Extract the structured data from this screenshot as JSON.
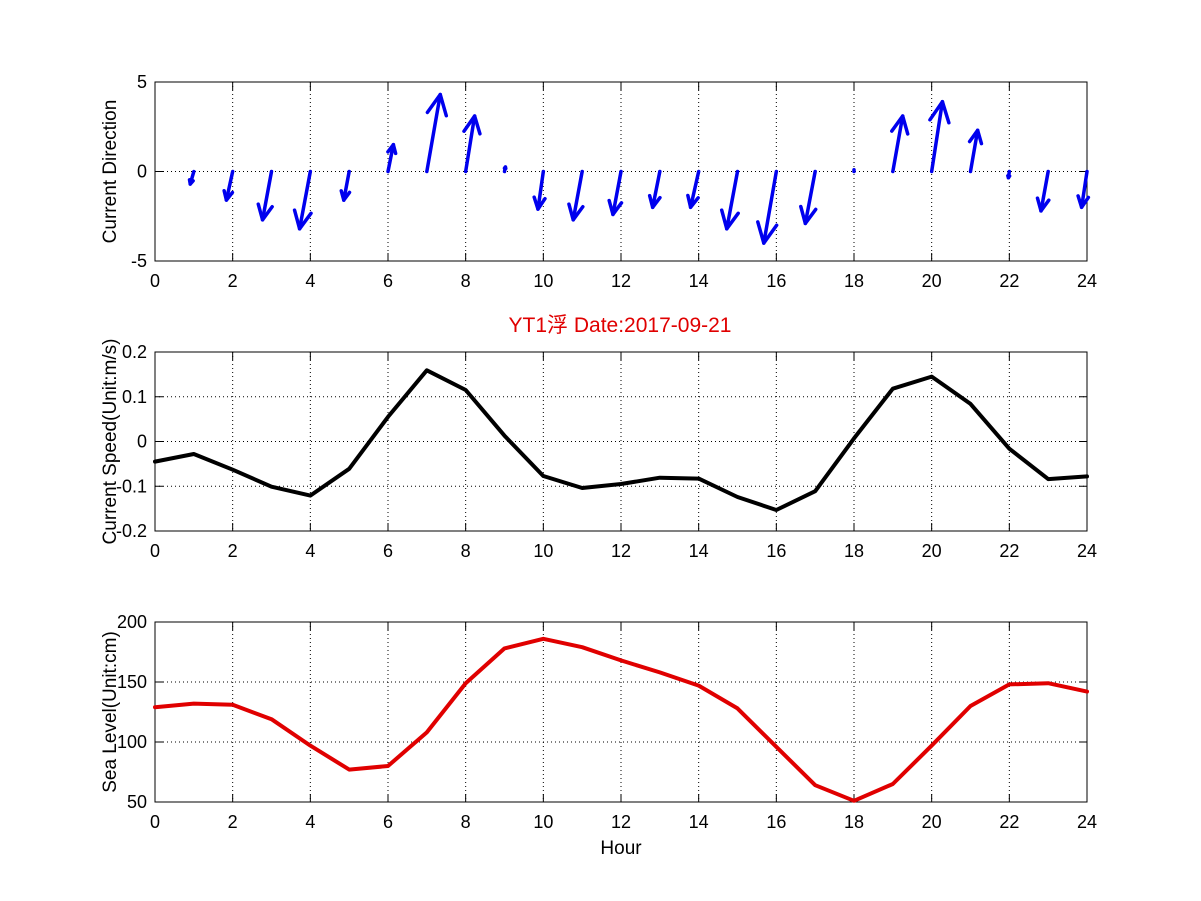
{
  "figure": {
    "title": "YT1浮    Date:2017-09-21",
    "title_color": "#e00000"
  },
  "chart_data": [
    {
      "id": "direction",
      "type": "quiver",
      "title": "",
      "xlabel": "",
      "ylabel": "Current Direction",
      "xlim": [
        0,
        24
      ],
      "ylim": [
        -5,
        5
      ],
      "xticks": [
        0,
        2,
        4,
        6,
        8,
        10,
        12,
        14,
        16,
        18,
        20,
        22,
        24
      ],
      "yticks": [
        -5,
        0,
        5
      ],
      "grid": true,
      "color": "#0000ee",
      "arrows": [
        {
          "x": 1,
          "u": -0.2,
          "v": -0.7
        },
        {
          "x": 2,
          "u": -0.35,
          "v": -1.6
        },
        {
          "x": 3,
          "u": -0.5,
          "v": -2.7
        },
        {
          "x": 4,
          "u": -0.6,
          "v": -3.2
        },
        {
          "x": 5,
          "u": -0.3,
          "v": -1.6
        },
        {
          "x": 6,
          "u": 0.3,
          "v": 1.5
        },
        {
          "x": 7,
          "u": 0.75,
          "v": 4.3
        },
        {
          "x": 8,
          "u": 0.5,
          "v": 3.1
        },
        {
          "x": 9,
          "u": 0.05,
          "v": 0.25
        },
        {
          "x": 10,
          "u": -0.3,
          "v": -2.1
        },
        {
          "x": 11,
          "u": -0.5,
          "v": -2.7
        },
        {
          "x": 12,
          "u": -0.45,
          "v": -2.4
        },
        {
          "x": 13,
          "u": -0.4,
          "v": -2.0
        },
        {
          "x": 14,
          "u": -0.45,
          "v": -2.0
        },
        {
          "x": 15,
          "u": -0.6,
          "v": -3.2
        },
        {
          "x": 16,
          "u": -0.7,
          "v": -4.0
        },
        {
          "x": 17,
          "u": -0.55,
          "v": -2.9
        },
        {
          "x": 18,
          "u": 0.0,
          "v": 0.1
        },
        {
          "x": 19,
          "u": 0.55,
          "v": 3.1
        },
        {
          "x": 20,
          "u": 0.6,
          "v": 3.9
        },
        {
          "x": 21,
          "u": 0.4,
          "v": 2.3
        },
        {
          "x": 22,
          "u": -0.05,
          "v": -0.35
        },
        {
          "x": 23,
          "u": -0.4,
          "v": -2.2
        },
        {
          "x": 24,
          "u": -0.3,
          "v": -2.0
        }
      ]
    },
    {
      "id": "speed",
      "type": "line",
      "title": "",
      "xlabel": "",
      "ylabel": "Current Speed(Unit:m/s)",
      "xlim": [
        0,
        24
      ],
      "ylim": [
        -0.2,
        0.2
      ],
      "xticks": [
        0,
        2,
        4,
        6,
        8,
        10,
        12,
        14,
        16,
        18,
        20,
        22,
        24
      ],
      "yticks": [
        0.2,
        0.1,
        0,
        -0.1,
        -0.2
      ],
      "grid": true,
      "color": "#000000",
      "x": [
        0,
        1,
        2,
        3,
        4,
        5,
        6,
        7,
        8,
        9,
        10,
        11,
        12,
        13,
        14,
        15,
        16,
        17,
        18,
        19,
        20,
        21,
        22,
        23,
        24
      ],
      "y": [
        -0.045,
        -0.028,
        -0.063,
        -0.101,
        -0.121,
        -0.061,
        0.055,
        0.159,
        0.115,
        0.013,
        -0.077,
        -0.104,
        -0.095,
        -0.081,
        -0.083,
        -0.124,
        -0.153,
        -0.111,
        0.007,
        0.118,
        0.145,
        0.084,
        -0.016,
        -0.084,
        -0.078
      ]
    },
    {
      "id": "sealevel",
      "type": "line",
      "title": "",
      "xlabel": "Hour",
      "ylabel": "Sea Level(Unit:cm)",
      "xlim": [
        0,
        24
      ],
      "ylim": [
        50,
        200
      ],
      "xticks": [
        0,
        2,
        4,
        6,
        8,
        10,
        12,
        14,
        16,
        18,
        20,
        22,
        24
      ],
      "yticks": [
        200,
        150,
        100,
        50
      ],
      "grid": true,
      "color": "#e00000",
      "x": [
        0,
        1,
        2,
        3,
        4,
        5,
        6,
        7,
        8,
        9,
        10,
        11,
        12,
        13,
        14,
        15,
        16,
        17,
        18,
        19,
        20,
        21,
        22,
        23,
        24
      ],
      "y": [
        129,
        132,
        131,
        119,
        97,
        77,
        80,
        108,
        149,
        178,
        186,
        179,
        168,
        158,
        147,
        128,
        96,
        64,
        51,
        65,
        97,
        130,
        148,
        149,
        142
      ]
    }
  ]
}
